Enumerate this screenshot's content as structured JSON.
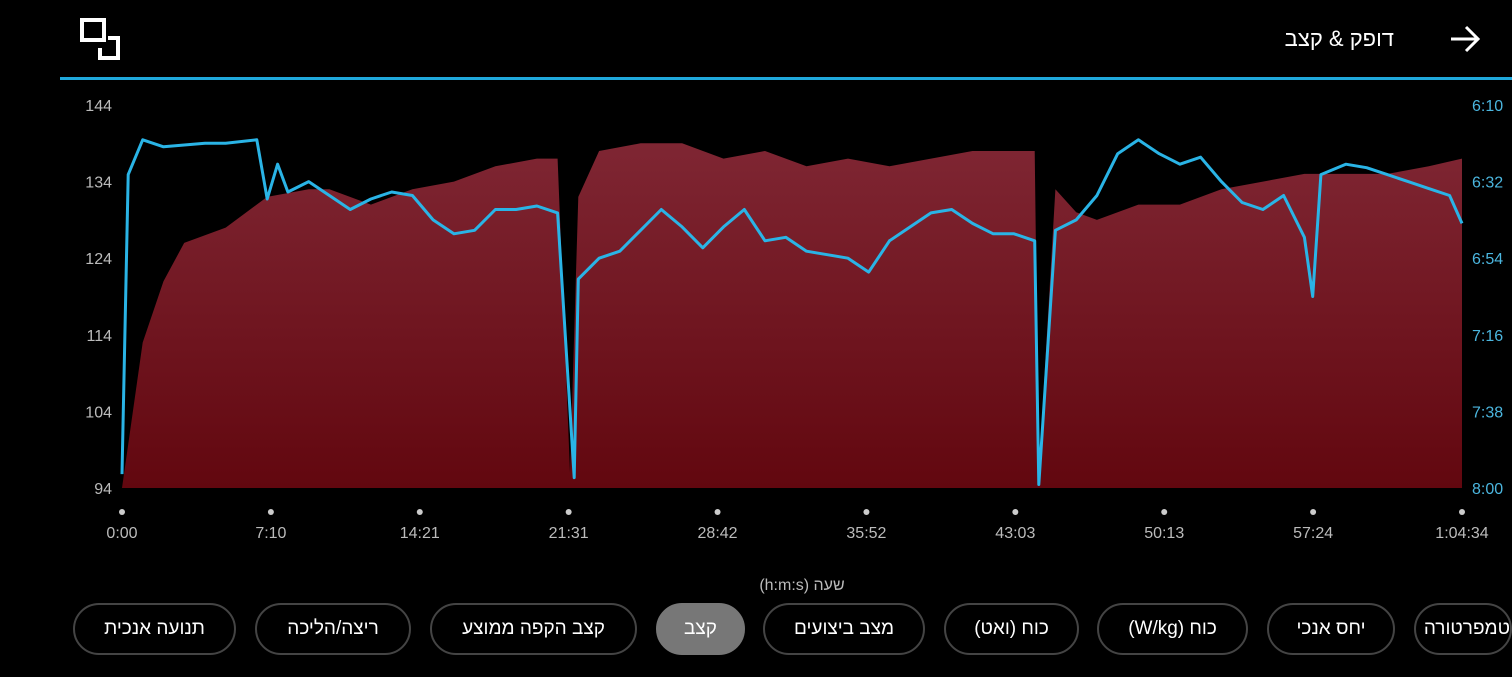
{
  "header": {
    "title": "דופק & קצב"
  },
  "chart_data": {
    "type": "area+line",
    "left_axis": {
      "ticks": [
        "144",
        "134",
        "124",
        "114",
        "104",
        "94"
      ],
      "ylim": [
        94,
        144
      ]
    },
    "right_axis": {
      "ticks": [
        "6:10",
        "6:32",
        "6:54",
        "7:16",
        "7:38",
        "8:00"
      ],
      "ylim_sec_per_km": [
        370,
        480
      ]
    },
    "x_ticks": [
      "0:00",
      "7:10",
      "14:21",
      "21:31",
      "28:42",
      "35:52",
      "43:03",
      "50:13",
      "57:24",
      "1:04:34"
    ],
    "xlabel": "שעה (h:m:s)",
    "colors": {
      "heart_rate_area": "#7a1a26",
      "pace_line": "#2ab4e6"
    },
    "heart_rate": {
      "x_minutes": [
        0,
        1,
        2,
        3,
        5,
        7,
        9,
        10,
        12,
        14,
        16,
        18,
        20,
        21,
        21.6,
        22,
        23,
        25,
        27,
        29,
        31,
        33,
        35,
        37,
        39,
        41,
        43,
        44,
        44.2,
        45,
        46,
        47,
        49,
        51,
        53,
        55,
        57,
        59,
        61,
        63,
        64.6
      ],
      "bpm": [
        94,
        113,
        121,
        126,
        128,
        132,
        133,
        133,
        131,
        133,
        134,
        136,
        137,
        137,
        96,
        132,
        138,
        139,
        139,
        137,
        138,
        136,
        137,
        136,
        137,
        138,
        138,
        138,
        96,
        133,
        130,
        129,
        131,
        131,
        133,
        134,
        135,
        135,
        135,
        136,
        137
      ]
    },
    "pace": {
      "x_minutes": [
        0,
        0.3,
        1,
        2,
        4,
        5,
        6.5,
        7,
        7.5,
        8,
        9,
        10,
        11,
        12,
        13,
        14,
        15,
        16,
        17,
        18,
        19,
        20,
        21,
        21.8,
        22,
        23,
        24,
        25,
        26,
        27,
        28,
        29,
        30,
        31,
        32,
        33,
        34,
        35,
        36,
        37,
        38,
        39,
        40,
        41,
        42,
        43,
        44,
        44.2,
        45,
        46,
        47,
        48,
        49,
        50,
        51,
        52,
        53,
        54,
        55,
        56,
        57,
        57.4,
        57.8,
        59,
        60,
        61,
        62,
        63,
        64,
        64.6
      ],
      "sec_per_km": [
        476,
        390,
        380,
        382,
        381,
        381,
        380,
        397,
        387,
        395,
        392,
        396,
        400,
        397,
        395,
        396,
        403,
        407,
        406,
        400,
        400,
        399,
        401,
        477,
        420,
        414,
        412,
        406,
        400,
        405,
        411,
        405,
        400,
        409,
        408,
        412,
        413,
        414,
        418,
        409,
        405,
        401,
        400,
        404,
        407,
        407,
        409,
        479,
        406,
        403,
        396,
        384,
        380,
        384,
        387,
        385,
        392,
        398,
        400,
        396,
        408,
        425,
        390,
        387,
        388,
        390,
        392,
        394,
        396,
        404
      ]
    }
  },
  "chips": [
    "תנועה אנכית",
    "ריצה/הליכה",
    "קצב הקפה ממוצע",
    "קצב",
    "מצב ביצועים",
    "כוח (ואט)",
    "כוח (W/kg)",
    "יחס אנכי",
    "טמפרטורה"
  ],
  "selected_chip": "קצב"
}
